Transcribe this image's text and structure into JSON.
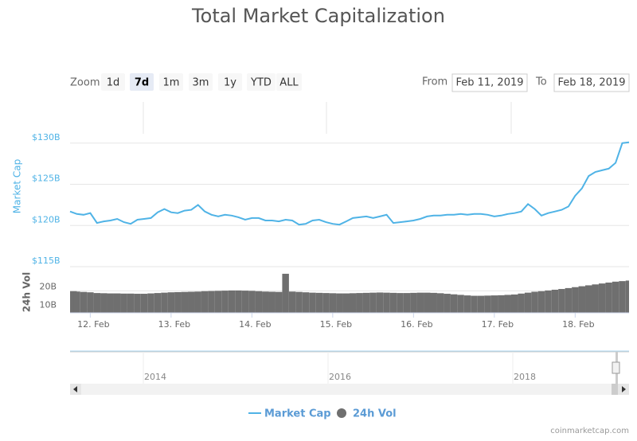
{
  "chart_data": {
    "type": "line",
    "title": "Total Market Capitalization",
    "categories": [
      null,
      null,
      null,
      "12. Feb",
      null,
      null,
      null,
      null,
      null,
      null,
      null,
      null,
      null,
      null,
      null,
      "13. Feb",
      null,
      null,
      null,
      null,
      null,
      null,
      null,
      null,
      null,
      null,
      null,
      "14. Feb",
      null,
      null,
      null,
      null,
      null,
      null,
      null,
      null,
      null,
      null,
      null,
      "15. Feb",
      null,
      null,
      null,
      null,
      null,
      null,
      null,
      null,
      null,
      null,
      null,
      "16. Feb",
      null,
      null,
      null,
      null,
      null,
      null,
      null,
      null,
      null,
      null,
      null,
      "17. Feb",
      null,
      null,
      null,
      null,
      null,
      null,
      null,
      null,
      null,
      null,
      null,
      "18. Feb",
      null,
      null,
      null,
      null,
      null,
      null,
      null,
      null
    ],
    "series": [
      {
        "name": "Market Cap",
        "color": "#4fb3e6",
        "values": [
          121.7,
          121.4,
          121.3,
          121.5,
          120.3,
          120.5,
          120.6,
          120.8,
          120.4,
          120.2,
          120.7,
          120.8,
          120.9,
          121.6,
          122.0,
          121.6,
          121.5,
          121.8,
          121.9,
          122.5,
          121.7,
          121.3,
          121.1,
          121.3,
          121.2,
          121.0,
          120.7,
          120.9,
          120.9,
          120.6,
          120.6,
          120.5,
          120.7,
          120.6,
          120.1,
          120.2,
          120.6,
          120.7,
          120.4,
          120.2,
          120.1,
          120.5,
          120.9,
          121.0,
          121.1,
          120.9,
          121.1,
          121.3,
          120.3,
          120.4,
          120.5,
          120.6,
          120.8,
          121.1,
          121.2,
          121.2,
          121.3,
          121.3,
          121.4,
          121.3,
          121.4,
          121.4,
          121.3,
          121.1,
          121.2,
          121.4,
          121.5,
          121.7,
          122.6,
          122.0,
          121.2,
          121.5,
          121.7,
          121.9,
          122.3,
          123.6,
          124.5,
          126.0,
          126.5,
          126.7,
          126.9,
          127.6,
          130.0,
          130.1
        ]
      },
      {
        "name": "24h Vol",
        "color": "#6f6f6f",
        "type": "bar",
        "axis": "y2",
        "values": [
          19.8,
          19.6,
          19.4,
          19.2,
          18.8,
          18.7,
          18.6,
          18.6,
          18.5,
          18.5,
          18.4,
          18.4,
          18.6,
          18.8,
          19.0,
          19.2,
          19.3,
          19.4,
          19.5,
          19.6,
          19.8,
          19.9,
          20.0,
          20.1,
          20.2,
          20.2,
          20.1,
          20.0,
          19.8,
          19.6,
          19.5,
          19.4,
          29.3,
          19.6,
          19.4,
          19.2,
          19.0,
          18.9,
          18.8,
          18.7,
          18.6,
          18.6,
          18.7,
          18.8,
          18.9,
          19.0,
          19.1,
          19.0,
          18.9,
          18.8,
          18.8,
          18.9,
          19.0,
          19.0,
          18.9,
          18.7,
          18.4,
          18.1,
          17.8,
          17.5,
          17.3,
          17.3,
          17.4,
          17.5,
          17.6,
          17.8,
          18.0,
          18.5,
          19.0,
          19.5,
          19.8,
          20.2,
          20.6,
          21.0,
          21.5,
          22.0,
          22.5,
          23.0,
          23.5,
          24.0,
          24.5,
          25.0,
          25.3,
          25.6
        ]
      }
    ],
    "ylabel": "Market Cap",
    "ylim": [
      115,
      135
    ],
    "yticks": [
      {
        "value": 115,
        "label": "$115B"
      },
      {
        "value": 120,
        "label": "$120B"
      },
      {
        "value": 125,
        "label": "$125B"
      },
      {
        "value": 130,
        "label": "$130B"
      }
    ],
    "y2label": "24h Vol",
    "y2lim": [
      8,
      31
    ],
    "y2ticks": [
      {
        "value": 10,
        "label": "10B"
      },
      {
        "value": 20,
        "label": "20B"
      }
    ],
    "grid": true,
    "legend": "bottom",
    "credit": "coinmarketcap.com",
    "navigator_labels": [
      "2014",
      "2016",
      "2018"
    ]
  },
  "controls": {
    "zoom_label": "Zoom",
    "buttons": [
      "1d",
      "7d",
      "1m",
      "3m",
      "1y",
      "YTD",
      "ALL"
    ],
    "selected_button": 1,
    "from_label": "From",
    "from_date": "Feb 11, 2019",
    "to_label": "To",
    "to_date": "Feb 18, 2019"
  }
}
